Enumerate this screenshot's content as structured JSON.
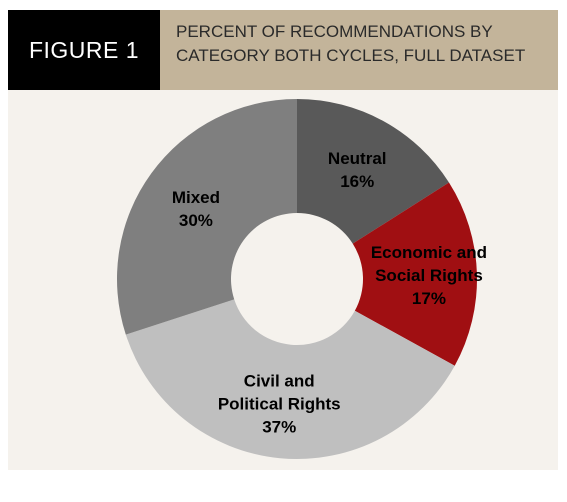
{
  "figure_tag": "FIGURE 1",
  "title_lines": [
    "PERCENT OF RECOMMENDATIONS BY",
    "CATEGORY BOTH CYCLES, FULL DATASET"
  ],
  "colors": {
    "figure_tag_bg": "#000000",
    "title_bg": "#c3b49a",
    "panel_bg": "#f5f2ed"
  },
  "chart_data": {
    "type": "pie",
    "style": "donut",
    "title": "PERCENT OF RECOMMENDATIONS BY CATEGORY BOTH CYCLES, FULL DATASET",
    "slices": [
      {
        "label_lines": [
          "Neutral"
        ],
        "pct_label": "16%",
        "value": 16,
        "color": "#595959",
        "text_color": "#000000"
      },
      {
        "label_lines": [
          "Economic and",
          "Social Rights"
        ],
        "pct_label": "17%",
        "value": 17,
        "color": "#a00f12",
        "text_color": "#000000"
      },
      {
        "label_lines": [
          "Civil and",
          "Political Rights"
        ],
        "pct_label": "37%",
        "value": 37,
        "color": "#bfbfbf",
        "text_color": "#000000"
      },
      {
        "label_lines": [
          "Mixed"
        ],
        "pct_label": "30%",
        "value": 30,
        "color": "#7f7f7f",
        "text_color": "#000000"
      }
    ]
  }
}
